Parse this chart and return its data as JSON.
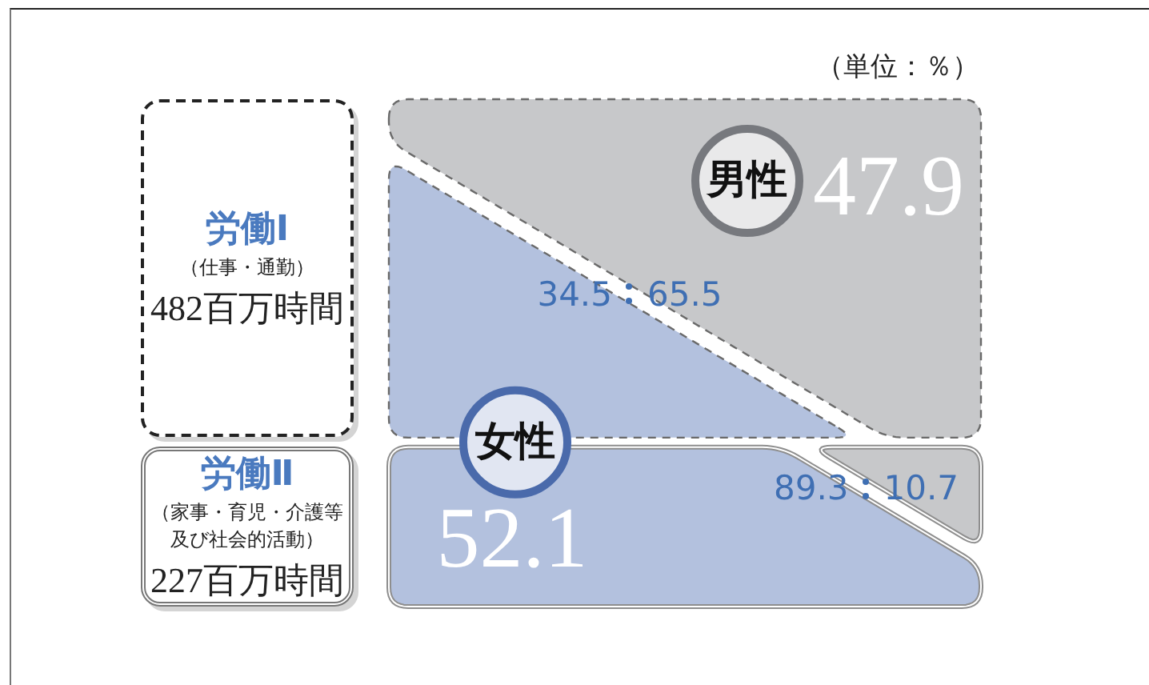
{
  "chart_data": {
    "type": "other",
    "categories": [
      "労働Ⅰ",
      "労働Ⅱ"
    ],
    "values": [
      482,
      227
    ],
    "value_labels": [
      "482百万時間",
      "227百万時間"
    ],
    "series": [
      {
        "name": "女性",
        "color": "#b3c1de",
        "values": [
          34.5,
          89.3
        ]
      },
      {
        "name": "男性",
        "color": "#c7c8ca",
        "values": [
          65.5,
          10.7
        ]
      }
    ],
    "data_labels": true,
    "annotations": [
      "（単位：％）",
      "（仕事・通勤）",
      "（家事・育児・介護等及び社会的活動）",
      "52.1",
      "47.9"
    ]
  }
}
